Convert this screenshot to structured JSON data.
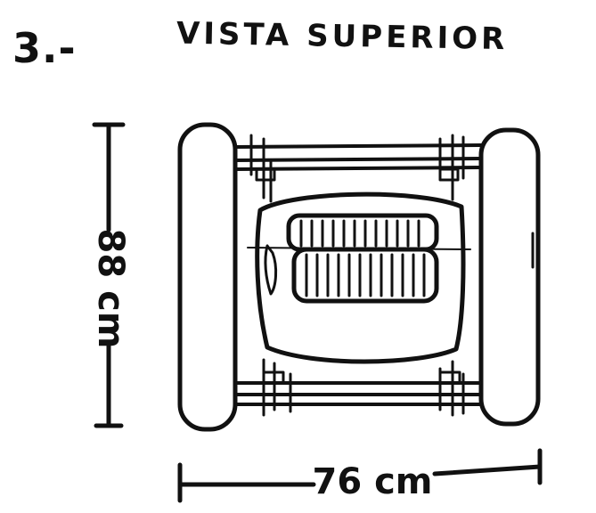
{
  "sheet": {
    "step_number": "3.-",
    "title": "VISTA SUPERIOR"
  },
  "dimensions": {
    "height_label": "88 cm",
    "width_label": "76 cm"
  },
  "colors": {
    "ink": "#111111",
    "paper": "#ffffff"
  }
}
